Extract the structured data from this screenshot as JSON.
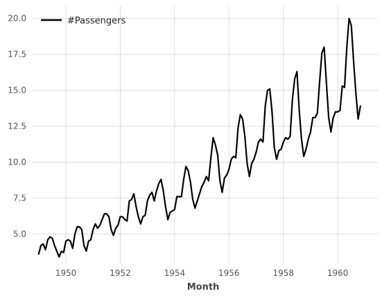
{
  "chart_data": {
    "type": "line",
    "title": "",
    "xlabel": "Month",
    "ylabel": "",
    "legend_position": "top-left",
    "grid": true,
    "xlim": [
      1948.75,
      1961.5
    ],
    "ylim": [
      2.9,
      20.9
    ],
    "x_ticks": [
      1950,
      1952,
      1954,
      1956,
      1958,
      1960
    ],
    "x_tick_labels": [
      "1950",
      "1952",
      "1954",
      "1956",
      "1958",
      "1960"
    ],
    "y_ticks": [
      5.0,
      7.5,
      10.0,
      12.5,
      15.0,
      17.5,
      20.0
    ],
    "y_tick_labels": [
      "5.0",
      "7.5",
      "10.0",
      "12.5",
      "15.0",
      "17.5",
      "20.0"
    ],
    "line_color": "#000000",
    "x_start": 1949.0,
    "x_step": 0.0833333,
    "series": [
      {
        "name": "#Passengers",
        "values": [
          3.6,
          4.2,
          4.3,
          3.9,
          4.6,
          4.8,
          4.7,
          4.2,
          3.8,
          3.4,
          3.8,
          3.7,
          4.5,
          4.6,
          4.5,
          4.0,
          5.0,
          5.5,
          5.5,
          5.3,
          4.2,
          3.8,
          4.5,
          4.6,
          5.3,
          5.7,
          5.4,
          5.6,
          6.0,
          6.4,
          6.4,
          6.2,
          5.3,
          4.9,
          5.4,
          5.6,
          6.2,
          6.2,
          6.0,
          5.9,
          7.3,
          7.4,
          7.8,
          6.9,
          6.2,
          5.7,
          6.2,
          6.3,
          7.3,
          7.7,
          7.9,
          7.3,
          8.0,
          8.5,
          8.8,
          8.0,
          6.9,
          6.0,
          6.5,
          6.6,
          6.7,
          7.6,
          7.6,
          7.6,
          8.8,
          9.7,
          9.4,
          8.6,
          7.4,
          6.8,
          7.3,
          7.8,
          8.3,
          8.6,
          9.0,
          8.7,
          10.3,
          11.7,
          11.2,
          10.5,
          8.7,
          7.9,
          8.9,
          9.1,
          9.5,
          10.2,
          10.4,
          10.3,
          12.4,
          13.3,
          13.0,
          11.8,
          9.9,
          9.0,
          9.9,
          10.2,
          10.7,
          11.4,
          11.6,
          11.4,
          13.9,
          15.0,
          15.1,
          13.5,
          11.0,
          10.2,
          10.8,
          10.9,
          11.4,
          11.7,
          11.6,
          11.8,
          14.4,
          15.8,
          16.3,
          13.6,
          11.6,
          10.4,
          10.9,
          11.6,
          12.1,
          13.1,
          13.1,
          13.4,
          15.6,
          17.6,
          18.0,
          15.5,
          13.1,
          12.1,
          13.1,
          13.5,
          13.5,
          13.6,
          15.3,
          15.2,
          18.0,
          20.0,
          19.5,
          17.0,
          14.8,
          13.0,
          13.9
        ]
      }
    ]
  }
}
